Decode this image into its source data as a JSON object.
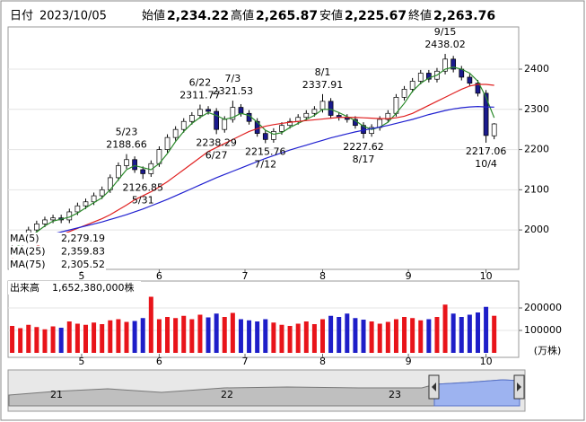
{
  "header": {
    "date_label": "日付",
    "date": "2023/10/05",
    "prices": [
      {
        "label": "始値",
        "text": "2,234.22",
        "color": "#000000"
      },
      {
        "label": "高値",
        "text": "2,265.87",
        "color": "#e00000"
      },
      {
        "label": "安値",
        "text": "2,225.67",
        "color": "#008800"
      },
      {
        "label": "終値",
        "text": "2,263.76",
        "color": "#000000"
      }
    ]
  },
  "chart_data": [
    {
      "type": "candlestick",
      "x": [
        0,
        2,
        4,
        6,
        8,
        10,
        12,
        14,
        16,
        18,
        20,
        22,
        24,
        26,
        28,
        30,
        32,
        34,
        36,
        38,
        40,
        42,
        44,
        46,
        48,
        50,
        52,
        54,
        56,
        58,
        60,
        62,
        64,
        66,
        68,
        70,
        72,
        74,
        76,
        78,
        80,
        82,
        84,
        86,
        88,
        90,
        92,
        94,
        96,
        98,
        100,
        102,
        104,
        106,
        108,
        110,
        112,
        114,
        116,
        118
      ],
      "open": [
        1950,
        1960,
        1985,
        2000,
        2015,
        2025,
        2030,
        2025,
        2045,
        2060,
        2070,
        2085,
        2100,
        2130,
        2160,
        2175,
        2150,
        2140,
        2165,
        2200,
        2230,
        2250,
        2270,
        2285,
        2300,
        2295,
        2250,
        2275,
        2305,
        2290,
        2270,
        2240,
        2225,
        2245,
        2260,
        2270,
        2280,
        2290,
        2300,
        2320,
        2285,
        2280,
        2275,
        2260,
        2240,
        2255,
        2275,
        2290,
        2330,
        2350,
        2370,
        2390,
        2375,
        2395,
        2425,
        2400,
        2380,
        2365,
        2340,
        2234.22
      ],
      "high": [
        1968,
        1993,
        2008,
        2023,
        2033,
        2038,
        2038,
        2053,
        2068,
        2078,
        2093,
        2108,
        2138,
        2168,
        2188.66,
        2183,
        2158,
        2173,
        2208,
        2238,
        2258,
        2278,
        2293,
        2311.77,
        2308,
        2303,
        2283,
        2321.53,
        2313,
        2298,
        2278,
        2248,
        2253,
        2268,
        2278,
        2288,
        2298,
        2308,
        2337.91,
        2328,
        2293,
        2288,
        2283,
        2268,
        2263,
        2283,
        2298,
        2338,
        2358,
        2378,
        2398,
        2398,
        2403,
        2438.02,
        2433,
        2408,
        2388,
        2373,
        2348,
        2265.87
      ],
      "low": [
        1942,
        1952,
        1977,
        1992,
        2007,
        2017,
        2017,
        2017,
        2037,
        2052,
        2062,
        2077,
        2092,
        2122,
        2152,
        2142,
        2126.85,
        2132,
        2157,
        2192,
        2222,
        2242,
        2262,
        2277,
        2287,
        2238.29,
        2242,
        2267,
        2282,
        2262,
        2232,
        2215.76,
        2217,
        2237,
        2252,
        2262,
        2272,
        2282,
        2292,
        2277,
        2272,
        2267,
        2252,
        2227.62,
        2232,
        2247,
        2267,
        2282,
        2322,
        2342,
        2362,
        2367,
        2367,
        2387,
        2392,
        2372,
        2357,
        2332,
        2217.06,
        2225.67
      ],
      "close": [
        1960,
        1985,
        2000,
        2015,
        2025,
        2030,
        2025,
        2045,
        2060,
        2070,
        2085,
        2100,
        2130,
        2160,
        2175,
        2150,
        2140,
        2165,
        2200,
        2230,
        2250,
        2270,
        2285,
        2300,
        2295,
        2250,
        2275,
        2305,
        2290,
        2270,
        2240,
        2225,
        2245,
        2260,
        2270,
        2280,
        2290,
        2300,
        2320,
        2285,
        2280,
        2275,
        2260,
        2240,
        2255,
        2275,
        2290,
        2330,
        2350,
        2370,
        2390,
        2375,
        2395,
        2425,
        2400,
        2380,
        2365,
        2340,
        2235,
        2263.76
      ],
      "up_color": "#ffffff",
      "down_color": "#1a1a8c",
      "series": [
        {
          "name": "MA(5)",
          "last": "2,279.19",
          "color": "#2a8a2a",
          "values": [
            1950,
            1965,
            1980,
            1995,
            2010,
            2022,
            2027,
            2032,
            2042,
            2055,
            2068,
            2080,
            2100,
            2125,
            2150,
            2160,
            2155,
            2150,
            2165,
            2190,
            2220,
            2245,
            2265,
            2280,
            2292,
            2285,
            2275,
            2280,
            2290,
            2285,
            2268,
            2248,
            2238,
            2242,
            2255,
            2265,
            2275,
            2285,
            2300,
            2300,
            2292,
            2282,
            2272,
            2258,
            2250,
            2256,
            2268,
            2290,
            2315,
            2345,
            2365,
            2378,
            2385,
            2400,
            2405,
            2400,
            2390,
            2370,
            2330,
            2279.19
          ]
        },
        {
          "name": "MA(25)",
          "last": "2,359.83",
          "color": "#e02020",
          "values": [
            1930,
            1940,
            1950,
            1960,
            1970,
            1980,
            1988,
            1996,
            2004,
            2012,
            2020,
            2028,
            2038,
            2050,
            2062,
            2075,
            2085,
            2095,
            2107,
            2120,
            2135,
            2150,
            2165,
            2180,
            2195,
            2205,
            2215,
            2225,
            2235,
            2245,
            2252,
            2258,
            2262,
            2265,
            2268,
            2270,
            2272,
            2274,
            2276,
            2278,
            2280,
            2280,
            2280,
            2279,
            2278,
            2277,
            2277,
            2279,
            2283,
            2290,
            2300,
            2310,
            2320,
            2330,
            2340,
            2350,
            2358,
            2362,
            2362,
            2359.83
          ]
        },
        {
          "name": "MA(75)",
          "last": "2,305.52",
          "color": "#2020d0",
          "values": [
            1965,
            1970,
            1975,
            1980,
            1985,
            1990,
            1995,
            2000,
            2005,
            2010,
            2015,
            2020,
            2026,
            2032,
            2038,
            2045,
            2052,
            2060,
            2068,
            2076,
            2085,
            2094,
            2103,
            2112,
            2121,
            2130,
            2138,
            2146,
            2154,
            2162,
            2170,
            2178,
            2185,
            2192,
            2199,
            2205,
            2211,
            2217,
            2223,
            2229,
            2234,
            2239,
            2244,
            2248,
            2252,
            2256,
            2260,
            2265,
            2270,
            2275,
            2281,
            2287,
            2292,
            2297,
            2301,
            2304,
            2306,
            2307,
            2306,
            2305.52
          ]
        }
      ],
      "annotations": [
        {
          "index": 28,
          "date": "5/23",
          "value": 2188.66,
          "kind": "high"
        },
        {
          "index": 32,
          "date": "5/31",
          "value": 2126.85,
          "kind": "low"
        },
        {
          "index": 46,
          "date": "6/22",
          "value": 2311.77,
          "kind": "high"
        },
        {
          "index": 50,
          "date": "6/27",
          "value": 2238.29,
          "kind": "low"
        },
        {
          "index": 54,
          "date": "7/3",
          "value": 2321.53,
          "kind": "high"
        },
        {
          "index": 62,
          "date": "7/12",
          "value": 2215.76,
          "kind": "low"
        },
        {
          "index": 76,
          "date": "8/1",
          "value": 2337.91,
          "kind": "high"
        },
        {
          "index": 86,
          "date": "8/17",
          "value": 2227.62,
          "kind": "low"
        },
        {
          "index": 106,
          "date": "9/15",
          "value": 2438.02,
          "kind": "high"
        },
        {
          "index": 116,
          "date": "10/4",
          "value": 2217.06,
          "kind": "low"
        }
      ],
      "xlim": [
        -1,
        124
      ],
      "xticks": [
        {
          "value": 17,
          "label": "5"
        },
        {
          "value": 36,
          "label": "6"
        },
        {
          "value": 57,
          "label": "7"
        },
        {
          "value": 76,
          "label": "8"
        },
        {
          "value": 97,
          "label": "9"
        },
        {
          "value": 116,
          "label": "10"
        }
      ],
      "ylim": [
        1902,
        2505
      ],
      "yticks": [
        2000,
        2100,
        2200,
        2300,
        2400
      ]
    },
    {
      "type": "bar",
      "title": "出来高",
      "total": "1,652,380,000株",
      "unit": "(万株)",
      "x": [
        0,
        2,
        4,
        6,
        8,
        10,
        12,
        14,
        16,
        18,
        20,
        22,
        24,
        26,
        28,
        30,
        32,
        34,
        36,
        38,
        40,
        42,
        44,
        46,
        48,
        50,
        52,
        54,
        56,
        58,
        60,
        62,
        64,
        66,
        68,
        70,
        72,
        74,
        76,
        78,
        80,
        82,
        84,
        86,
        88,
        90,
        92,
        94,
        96,
        98,
        100,
        102,
        104,
        106,
        108,
        110,
        112,
        114,
        116,
        118
      ],
      "values": [
        120000,
        110000,
        125000,
        115000,
        105000,
        118000,
        112000,
        140000,
        130000,
        125000,
        135000,
        128000,
        145000,
        150000,
        138000,
        142000,
        155000,
        250000,
        150000,
        160000,
        155000,
        165000,
        150000,
        170000,
        158000,
        175000,
        160000,
        178000,
        150000,
        145000,
        140000,
        150000,
        135000,
        125000,
        120000,
        130000,
        140000,
        128000,
        150000,
        165000,
        160000,
        175000,
        155000,
        148000,
        140000,
        130000,
        138000,
        150000,
        160000,
        155000,
        145000,
        150000,
        160000,
        215000,
        175000,
        160000,
        170000,
        180000,
        205000,
        165238
      ],
      "up_color": "#e8141a",
      "down_color": "#1e1ec8",
      "xlim": [
        -1,
        124
      ],
      "xticks": [
        {
          "value": 17,
          "label": "5"
        },
        {
          "value": 36,
          "label": "6"
        },
        {
          "value": 57,
          "label": "7"
        },
        {
          "value": 76,
          "label": "8"
        },
        {
          "value": 97,
          "label": "9"
        },
        {
          "value": 116,
          "label": "10"
        }
      ],
      "ylim": [
        0,
        252000
      ],
      "yticks": [
        100000,
        200000
      ]
    }
  ],
  "navigator": {
    "labels": [
      "21",
      "22",
      "23"
    ]
  }
}
